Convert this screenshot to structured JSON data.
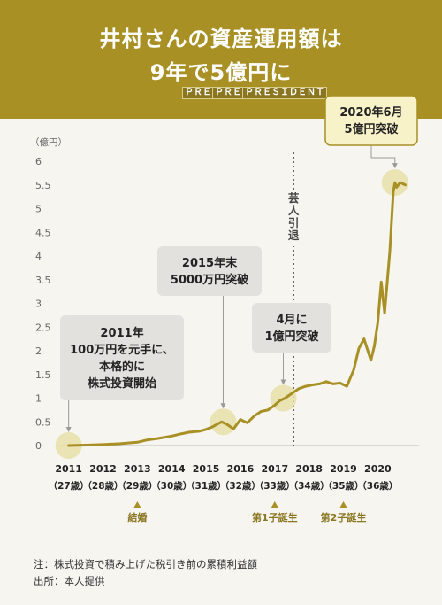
{
  "header": {
    "title_line1": "井村さんの資産運用額は",
    "title_line2": "9年で5億円に",
    "logos": [
      "ＰＲＥＳＩＤＥＮＴ",
      "ＰＲＥＳＩＤＥＮＴ",
      "ＰＲＥＳＩＤＥＮＴ"
    ],
    "accent_color": "#a89025"
  },
  "chart_data": {
    "type": "line",
    "ylabel": "（億円）",
    "ylim": [
      0,
      6
    ],
    "yticks": [
      "0",
      "0.5",
      "1",
      "1.5",
      "2",
      "2.5",
      "3",
      "3.5",
      "4",
      "4.5",
      "5",
      "5.5",
      "6"
    ],
    "xlim": [
      2010.7,
      2021.2
    ],
    "xticks": [
      {
        "year": "2011",
        "age": "（27歳）"
      },
      {
        "year": "2012",
        "age": "（28歳）"
      },
      {
        "year": "2013",
        "age": "（29歳）"
      },
      {
        "year": "2014",
        "age": "（30歳）"
      },
      {
        "year": "2015",
        "age": "（31歳）"
      },
      {
        "year": "2016",
        "age": "（32歳）"
      },
      {
        "year": "2017",
        "age": "（33歳）"
      },
      {
        "year": "2018",
        "age": "（34歳）"
      },
      {
        "year": "2019",
        "age": "（35歳）"
      },
      {
        "year": "2020",
        "age": "（36歳）"
      }
    ],
    "series": [
      {
        "color": "#a89025",
        "x": [
          2011.0,
          2011.5,
          2012.0,
          2012.5,
          2013.0,
          2013.3,
          2013.6,
          2014.0,
          2014.3,
          2014.5,
          2014.8,
          2015.0,
          2015.2,
          2015.45,
          2015.6,
          2015.8,
          2016.0,
          2016.2,
          2016.4,
          2016.6,
          2016.8,
          2017.0,
          2017.15,
          2017.3,
          2017.5,
          2017.7,
          2017.9,
          2018.1,
          2018.3,
          2018.5,
          2018.7,
          2018.9,
          2019.1,
          2019.3,
          2019.45,
          2019.6,
          2019.8,
          2019.9,
          2020.0,
          2020.1,
          2020.2,
          2020.35,
          2020.45,
          2020.5,
          2020.55,
          2020.65,
          2020.8
        ],
        "y": [
          0.0,
          0.01,
          0.02,
          0.04,
          0.07,
          0.12,
          0.15,
          0.2,
          0.25,
          0.28,
          0.3,
          0.34,
          0.4,
          0.5,
          0.45,
          0.35,
          0.55,
          0.48,
          0.62,
          0.72,
          0.75,
          0.85,
          0.95,
          1.0,
          1.1,
          1.2,
          1.25,
          1.28,
          1.3,
          1.35,
          1.3,
          1.32,
          1.25,
          1.6,
          2.05,
          2.25,
          1.8,
          2.1,
          2.6,
          3.45,
          2.8,
          4.1,
          5.35,
          5.55,
          5.45,
          5.55,
          5.5
        ]
      }
    ],
    "retirement_marker": {
      "x": 2017.55,
      "label": "芸人引退"
    },
    "events": [
      {
        "x": 2013,
        "label": "結婚"
      },
      {
        "x": 2017,
        "label": "第1子誕生"
      },
      {
        "x": 2019,
        "label": "第2子誕生"
      }
    ],
    "callouts": [
      {
        "lines": [
          "2011年",
          "100万円を元手に、",
          "本格的に",
          "株式投資開始"
        ],
        "x": 2011.0,
        "y": 0.0
      },
      {
        "lines": [
          "2015年末",
          "5000万円突破"
        ],
        "x": 2015.5,
        "y": 0.5
      },
      {
        "lines": [
          "4月に",
          "1億円突破"
        ],
        "x": 2017.25,
        "y": 1.0
      },
      {
        "lines": [
          "2020年6月",
          "5億円突破"
        ],
        "x": 2020.5,
        "y": 5.55
      }
    ]
  },
  "notes": {
    "note": "注：株式投資で積み上げた税引き前の累積利益額",
    "source": "出所：本人提供"
  }
}
